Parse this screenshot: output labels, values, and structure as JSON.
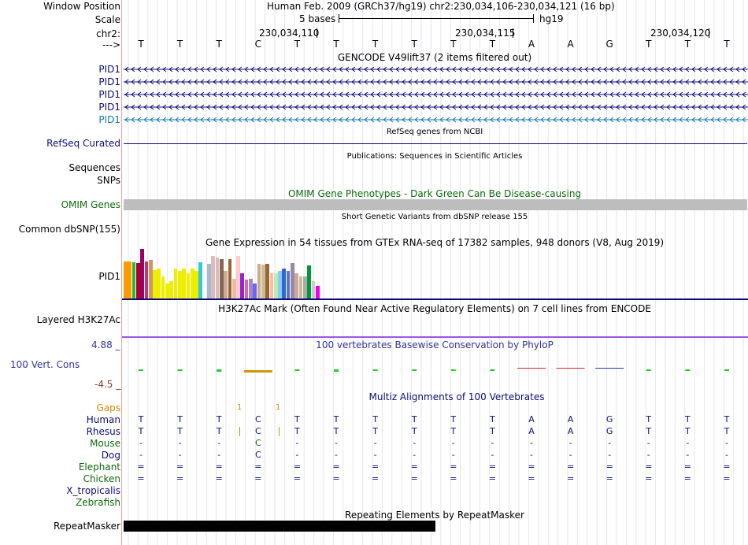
{
  "header": {
    "window_position_label": "Window Position",
    "window_position_value": "Human Feb. 2009 (GRCh37/hg19)   chr2:230,034,106-230,034,121 (16 bp)",
    "scale_label": "Scale",
    "scale_value": "5 bases",
    "scale_assembly": "hg19",
    "chrom_label": "chr2:",
    "positions": [
      "230,034,110",
      "230,034,115",
      "230,034,120"
    ],
    "strand_label": "--->"
  },
  "sequence": [
    "T",
    "T",
    "T",
    "C",
    "T",
    "T",
    "T",
    "T",
    "T",
    "T",
    "A",
    "A",
    "G",
    "T",
    "T",
    "T"
  ],
  "tracks": {
    "gencode": {
      "title": "GENCODE V49lift37 (2 items filtered out)",
      "items": [
        "PID1",
        "PID1",
        "PID1",
        "PID1",
        "PID1"
      ],
      "colors": [
        "#0c0c78",
        "#0c0c78",
        "#0c0c78",
        "#0c0c78",
        "#0c7ab8"
      ]
    },
    "refseq": {
      "title": "RefSeq genes from NCBI",
      "label": "RefSeq Curated"
    },
    "publications": {
      "title": "Publications: Sequences in Scientific Articles",
      "label1": "Sequences",
      "label2": "SNPs"
    },
    "omim": {
      "title": "OMIM Gene Phenotypes - Dark Green Can Be Disease-causing",
      "label": "OMIM Genes"
    },
    "dbsnp": {
      "title": "Short Genetic Variants from dbSNP release 155",
      "label": "Common dbSNP(155)"
    },
    "gtex": {
      "title": "Gene Expression in 54 tissues from GTEx RNA-seq of 17382 samples, 948 donors (V8, Aug 2019)",
      "label": "PID1",
      "bars": [
        {
          "c": "#ff9900",
          "v": 0.75
        },
        {
          "c": "#ff9900",
          "v": 0.75
        },
        {
          "c": "#22bb33",
          "v": 0.73
        },
        {
          "c": "#aa0033",
          "v": 0.72
        },
        {
          "c": "#990066",
          "v": 1.0
        },
        {
          "c": "#cc3366",
          "v": 0.75
        },
        {
          "c": "#cc9966",
          "v": 0.78
        },
        {
          "c": "#eeee00",
          "v": 0.57
        },
        {
          "c": "#eeee00",
          "v": 0.6
        },
        {
          "c": "#eeee00",
          "v": 0.45
        },
        {
          "c": "#eeee00",
          "v": 0.3
        },
        {
          "c": "#eeee00",
          "v": 0.35
        },
        {
          "c": "#eeee00",
          "v": 0.6
        },
        {
          "c": "#eeee00",
          "v": 0.55
        },
        {
          "c": "#eeee00",
          "v": 0.6
        },
        {
          "c": "#eeee00",
          "v": 0.5
        },
        {
          "c": "#eeee00",
          "v": 0.6
        },
        {
          "c": "#eeee00",
          "v": 0.55
        },
        {
          "c": "#33cccc",
          "v": 0.73
        },
        {
          "c": "#ffffff",
          "v": 0
        },
        {
          "c": "#aabbcc",
          "v": 0.7
        },
        {
          "c": "#ddbbbb",
          "v": 0.85
        },
        {
          "c": "#ddbbbb",
          "v": 0.83
        },
        {
          "c": "#886655",
          "v": 0.8
        },
        {
          "c": "#ccaa99",
          "v": 0.55
        },
        {
          "c": "#996633",
          "v": 0.8
        },
        {
          "c": "#eebbaa",
          "v": 0.4
        },
        {
          "c": "#ffcccc",
          "v": 0.85
        },
        {
          "c": "#9922cc",
          "v": 0.5
        },
        {
          "c": "#cc66cc",
          "v": 0.38
        },
        {
          "c": "#aa88bb",
          "v": 0.4
        },
        {
          "c": "#6666ff",
          "v": 0.3
        },
        {
          "c": "#ccaa88",
          "v": 0.7
        },
        {
          "c": "#ccbb99",
          "v": 0.68
        },
        {
          "c": "#996633",
          "v": 0.7
        },
        {
          "c": "#ffbbaa",
          "v": 0.5
        },
        {
          "c": "#bbeeaa",
          "v": 0.5
        },
        {
          "c": "#88ccff",
          "v": 0.55
        },
        {
          "c": "#3366cc",
          "v": 0.6
        },
        {
          "c": "#5577bb",
          "v": 0.55
        },
        {
          "c": "#9988aa",
          "v": 0.72
        },
        {
          "c": "#ccaa99",
          "v": 0.5
        },
        {
          "c": "#ccbb99",
          "v": 0.45
        },
        {
          "c": "#aaaaaa",
          "v": 0.45
        },
        {
          "c": "#009933",
          "v": 0.67
        },
        {
          "c": "#cccccc",
          "v": 0.35
        },
        {
          "c": "#ee00ee",
          "v": 0.25
        }
      ]
    },
    "h3k27ac": {
      "title": "H3K27Ac Mark (Often Found Near Active Regulatory Elements) on 7 cell lines from ENCODE",
      "label": "Layered H3K27Ac"
    },
    "phylop": {
      "title": "100 vertebrates Basewise Conservation by PhyloP",
      "label": "100 Vert. Cons",
      "max_label": "4.88 _",
      "min_label": "-4.5 _"
    },
    "multiz": {
      "title": "Multiz Alignments of 100 Vertebrates",
      "gaps_label": "Gaps",
      "gap_counts": [
        "1",
        "1"
      ],
      "species": [
        {
          "name": "Human",
          "color": "#0c0c78",
          "seq": [
            "T",
            "T",
            "T",
            "C",
            "T",
            "T",
            "T",
            "T",
            "T",
            "T",
            "A",
            "A",
            "G",
            "T",
            "T",
            "T"
          ]
        },
        {
          "name": "Rhesus",
          "color": "#0c0c78",
          "seq": [
            "T",
            "T",
            "T",
            "C",
            "T",
            "T",
            "T",
            "T",
            "T",
            "T",
            "A",
            "A",
            "G",
            "T",
            "T",
            "T"
          ]
        },
        {
          "name": "Mouse",
          "color": "#0c6a0c",
          "seq": [
            "-",
            "-",
            "-",
            "C",
            "-",
            "-",
            "-",
            "-",
            "-",
            "-",
            "-",
            "-",
            "-",
            "-",
            "-",
            "-"
          ]
        },
        {
          "name": "Dog",
          "color": "#0c0c78",
          "seq": [
            "-",
            "-",
            "-",
            "C",
            "-",
            "-",
            "-",
            "-",
            "-",
            "-",
            "-",
            "-",
            "-",
            "-",
            "-",
            "-"
          ]
        },
        {
          "name": "Elephant",
          "color": "#0c6a0c",
          "seq": [
            "=",
            "=",
            "=",
            "=",
            "=",
            "=",
            "=",
            "=",
            "=",
            "=",
            "=",
            "=",
            "=",
            "=",
            "=",
            "="
          ]
        },
        {
          "name": "Chicken",
          "color": "#0c6a0c",
          "seq": [
            "=",
            "=",
            "=",
            "=",
            "=",
            "=",
            "=",
            "=",
            "=",
            "=",
            "=",
            "=",
            "=",
            "=",
            "=",
            "="
          ]
        },
        {
          "name": "X_tropicalis",
          "color": "#0c0c78",
          "seq": []
        },
        {
          "name": "Zebrafish",
          "color": "#0c6a0c",
          "seq": []
        }
      ]
    },
    "repeatmasker": {
      "title": "Repeating Elements by RepeatMasker",
      "label": "RepeatMasker"
    }
  },
  "colors": {
    "label_navy": "#0c0c78",
    "label_green": "#0c6a0c",
    "label_orange": "#d98c00",
    "omim_bar": "#bdbdbd",
    "h3k27ac_line": "#8a2be2",
    "gtex_line": "#0c0c78",
    "phylop_title": "#333399",
    "phylop_max": "#333399",
    "phylop_min": "#993333"
  }
}
